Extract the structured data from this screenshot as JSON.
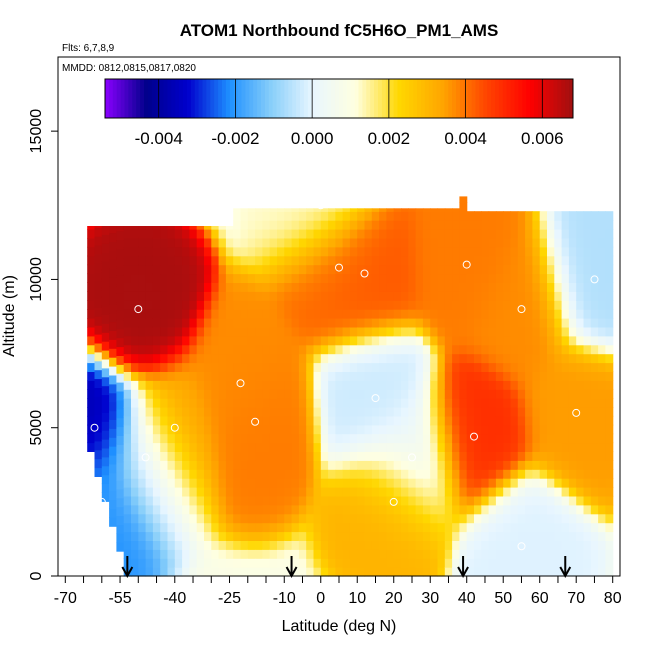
{
  "chart_data": {
    "type": "heatmap",
    "title": "ATOM1 Northbound fC5H6O_PM1_AMS",
    "flights_label": "Flts: 6,7,8,9",
    "dates_label": "MMDD: 0812,0815,0817,0820",
    "xlabel": "Latitude (deg N)",
    "ylabel": "Altitude (m)",
    "xlim": [
      -72,
      82
    ],
    "ylim": [
      0,
      17500
    ],
    "x_ticks": [
      -70,
      -55,
      -40,
      -25,
      -10,
      0,
      10,
      20,
      30,
      40,
      50,
      60,
      70,
      80
    ],
    "y_ticks": [
      0,
      5000,
      10000,
      15000
    ],
    "colorbar": {
      "min": -0.0054,
      "max": 0.0068,
      "ticks": [
        -0.004,
        -0.002,
        0.0,
        0.002,
        0.004,
        0.006
      ],
      "tick_labels": [
        "-0.004",
        "-0.002",
        "0.000",
        "0.002",
        "0.004",
        "0.006"
      ],
      "colors": [
        "#8b00ff",
        "#00008b",
        "#0000cd",
        "#1e90ff",
        "#87cefa",
        "#e8f6ff",
        "#ffffe0",
        "#ffd700",
        "#ffa500",
        "#ff4500",
        "#ff0000",
        "#a01010"
      ]
    },
    "profile_arrows_lat": [
      -53,
      -8,
      39,
      67
    ],
    "features": [
      {
        "lat": -50,
        "alt": 9000,
        "value": 0.0058
      },
      {
        "lat": -40,
        "alt": 5000,
        "value": 0.0025
      },
      {
        "lat": -22,
        "alt": 6500,
        "value": 0.0028
      },
      {
        "lat": -18,
        "alt": 5200,
        "value": 0.003
      },
      {
        "lat": 5,
        "alt": 10400,
        "value": 0.0032
      },
      {
        "lat": 12,
        "alt": 10200,
        "value": 0.0034
      },
      {
        "lat": 20,
        "alt": 2500,
        "value": 0.0022
      },
      {
        "lat": 40,
        "alt": 10500,
        "value": 0.003
      },
      {
        "lat": 42,
        "alt": 4700,
        "value": 0.004
      },
      {
        "lat": 55,
        "alt": 9000,
        "value": 0.0028
      },
      {
        "lat": 70,
        "alt": 5500,
        "value": 0.0026
      },
      {
        "lat": -62,
        "alt": 5000,
        "value": -0.0045
      },
      {
        "lat": -60,
        "alt": 2500,
        "value": -0.003
      },
      {
        "lat": -48,
        "alt": 4000,
        "value": -0.0012
      },
      {
        "lat": 15,
        "alt": 6000,
        "value": -0.0012
      },
      {
        "lat": 25,
        "alt": 4000,
        "value": -0.0008
      },
      {
        "lat": 55,
        "alt": 1000,
        "value": -0.001
      },
      {
        "lat": 75,
        "alt": 10000,
        "value": -0.0015
      },
      {
        "lat": 0,
        "alt": 12500,
        "value": 0.0003
      }
    ],
    "grid": false
  }
}
